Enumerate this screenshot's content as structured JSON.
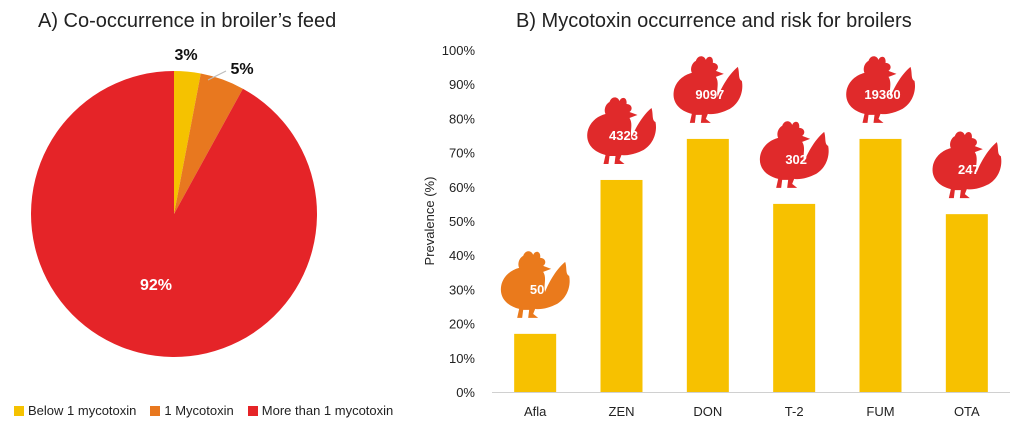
{
  "colors": {
    "yellow": "#f5c200",
    "orange": "#e8781f",
    "red": "#e52428",
    "bar": "#f7c100",
    "chicken_red": "#e02a2b",
    "chicken_orange": "#ea7a1c"
  },
  "chart_data": [
    {
      "type": "pie",
      "title": "A) Co-occurrence in broiler’s feed",
      "slices": [
        {
          "label": "Below 1 mycotoxin",
          "value": 3,
          "display": "3%",
          "color": "#f5c200"
        },
        {
          "label": "1 Mycotoxin",
          "value": 5,
          "display": "5%",
          "color": "#e8781f"
        },
        {
          "label": "More than 1 mycotoxin",
          "value": 92,
          "display": "92%",
          "color": "#e52428"
        }
      ],
      "legend_position": "bottom"
    },
    {
      "type": "bar",
      "title": "B) Mycotoxin occurrence and risk for broilers",
      "ylabel": "Prevalence (%)",
      "ylim": [
        0,
        100
      ],
      "yticks": [
        "0%",
        "10%",
        "20%",
        "30%",
        "40%",
        "50%",
        "60%",
        "70%",
        "80%",
        "90%",
        "100%"
      ],
      "categories": [
        "Afla",
        "ZEN",
        "DON",
        "T-2",
        "FUM",
        "OTA"
      ],
      "values": [
        17,
        62,
        74,
        55,
        74,
        52
      ],
      "chicken_labels": [
        "50",
        "4323",
        "9097",
        "302",
        "19360",
        "247"
      ],
      "chicken_icons": [
        "orange-chicken-icon",
        "red-chicken-icon",
        "red-chicken-icon",
        "red-chicken-icon",
        "red-chicken-icon",
        "red-chicken-icon"
      ],
      "grid": false
    }
  ]
}
